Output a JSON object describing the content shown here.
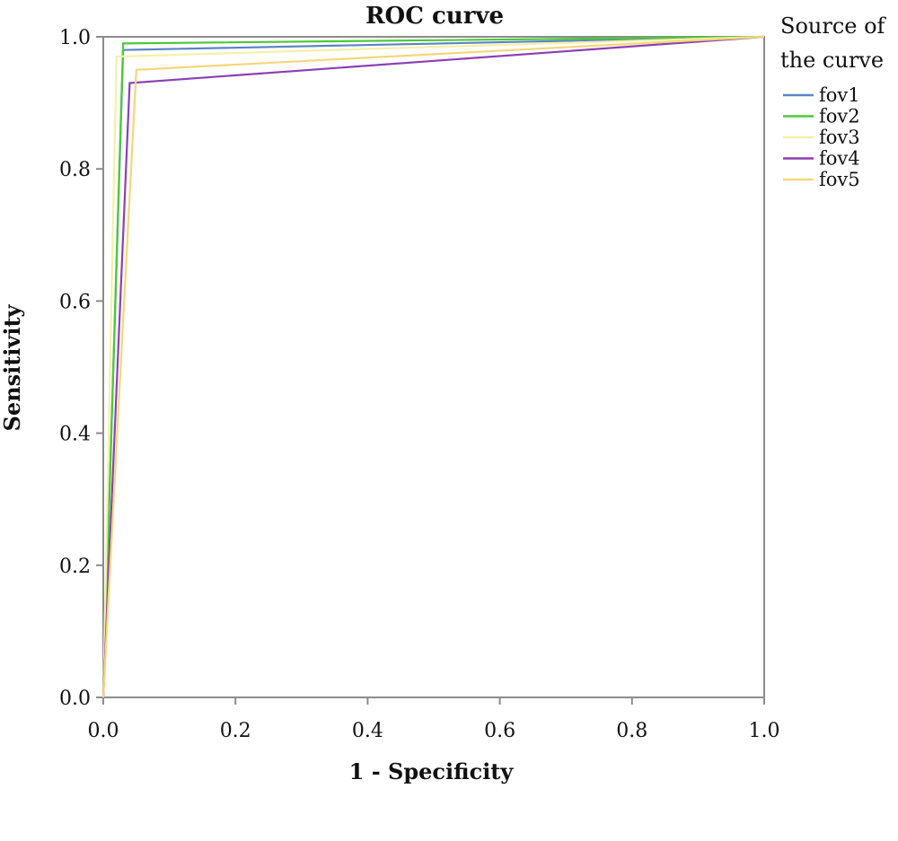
{
  "chart_data": {
    "type": "line",
    "title": "ROC curve",
    "xlabel": "1 - Specificity",
    "ylabel": "Sensitivity",
    "xlim": [
      0,
      1
    ],
    "ylim": [
      0,
      1
    ],
    "x_ticks": [
      "0.0",
      "0.2",
      "0.4",
      "0.6",
      "0.8",
      "1.0"
    ],
    "y_ticks": [
      "0.0",
      "0.2",
      "0.4",
      "0.6",
      "0.8",
      "1.0"
    ],
    "grid": false,
    "legend": {
      "title_line1": "Source of",
      "title_line2": "the curve",
      "position": "right"
    },
    "series": [
      {
        "name": "fov1",
        "color": "#5b84c4",
        "x": [
          0,
          0.03,
          1
        ],
        "y": [
          0,
          0.98,
          1
        ]
      },
      {
        "name": "fov2",
        "color": "#4cc93a",
        "x": [
          0,
          0.03,
          1
        ],
        "y": [
          0,
          0.99,
          1
        ]
      },
      {
        "name": "fov3",
        "color": "#f5f0a8",
        "x": [
          0,
          0.02,
          1
        ],
        "y": [
          0,
          0.97,
          1
        ]
      },
      {
        "name": "fov4",
        "color": "#8c3fb5",
        "x": [
          0,
          0.04,
          1
        ],
        "y": [
          0,
          0.93,
          1
        ]
      },
      {
        "name": "fov5",
        "color": "#f2d77a",
        "x": [
          0,
          0.05,
          1
        ],
        "y": [
          0,
          0.95,
          1
        ]
      }
    ]
  }
}
